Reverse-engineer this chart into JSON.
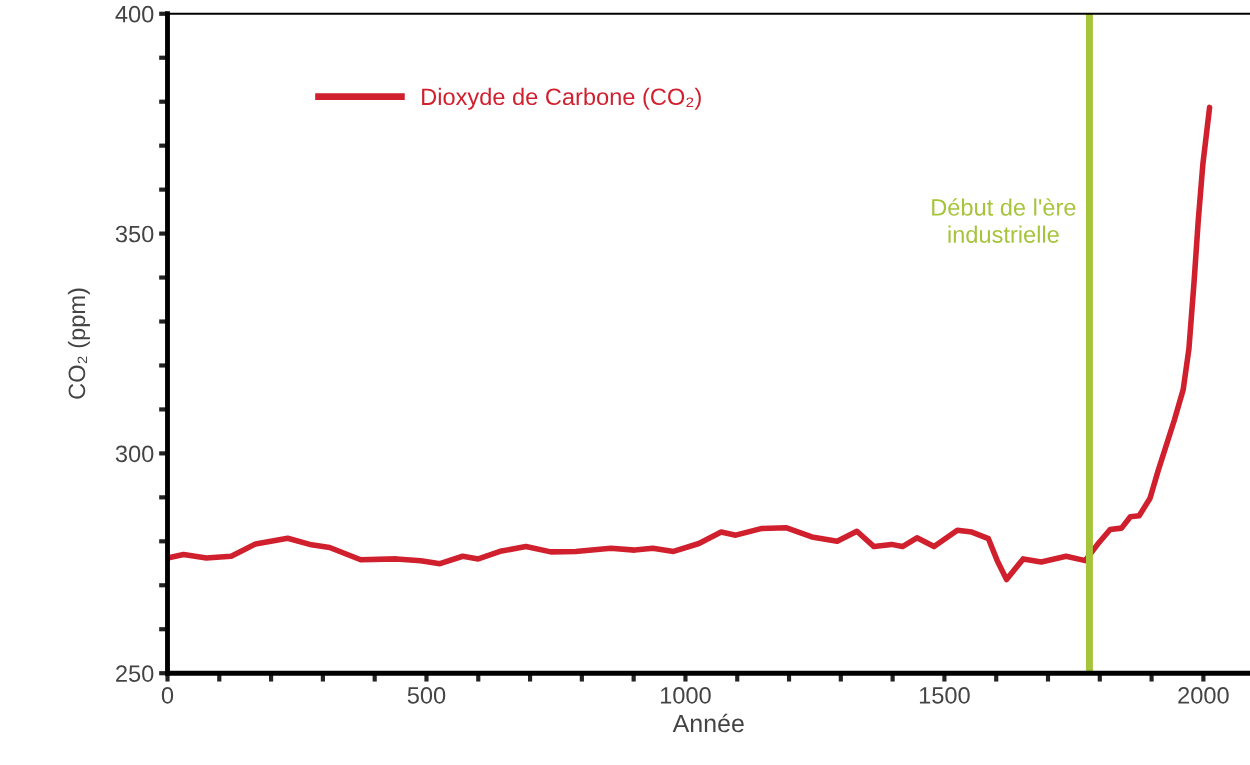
{
  "chart_data": {
    "type": "line",
    "xlabel": "Année",
    "ylabel": "CO₂ (ppm)",
    "xlim": [
      0,
      2090
    ],
    "xticks": [
      0,
      500,
      1000,
      1500,
      2000
    ],
    "ylim": [
      250,
      400
    ],
    "yticks": [
      250,
      300,
      350,
      400
    ],
    "grid": false,
    "legend": "top left",
    "marker": "none",
    "line_style": "solid",
    "series": [
      {
        "name": "Dioxyde de Carbone (CO₂)",
        "color": "#d0202e",
        "x": [
          0,
          31,
          75,
          123,
          170,
          232,
          278,
          313,
          373,
          442,
          489,
          526,
          570,
          600,
          645,
          692,
          740,
          788,
          856,
          902,
          937,
          977,
          1026,
          1069,
          1097,
          1146,
          1194,
          1244,
          1293,
          1331,
          1364,
          1398,
          1419,
          1447,
          1480,
          1525,
          1553,
          1585,
          1602,
          1620,
          1652,
          1687,
          1735,
          1772,
          1799,
          1820,
          1842,
          1859,
          1876,
          1897,
          1913,
          1944,
          1961,
          1972,
          1982,
          1990,
          1999,
          2012
        ],
        "values": [
          276.2,
          277.0,
          276.2,
          276.6,
          279.4,
          280.7,
          279.2,
          278.6,
          275.8,
          276.0,
          275.6,
          274.9,
          276.6,
          276.0,
          277.8,
          278.8,
          277.6,
          277.7,
          278.4,
          278.0,
          278.4,
          277.7,
          279.5,
          282.1,
          281.4,
          282.9,
          283.1,
          281.0,
          280.0,
          282.3,
          278.8,
          279.3,
          278.8,
          280.8,
          278.8,
          282.5,
          282.1,
          280.6,
          275.6,
          271.3,
          276.0,
          275.3,
          276.6,
          275.6,
          279.8,
          282.7,
          283.0,
          285.6,
          285.8,
          289.8,
          296.2,
          307.6,
          314.5,
          323.7,
          339.0,
          352.8,
          365.8,
          378.7
        ]
      }
    ],
    "ref_lines": [
      {
        "axis": "x",
        "value": 1780,
        "label": "Début de l'ère\nindustrielle",
        "color": "#a5c43a"
      }
    ]
  }
}
